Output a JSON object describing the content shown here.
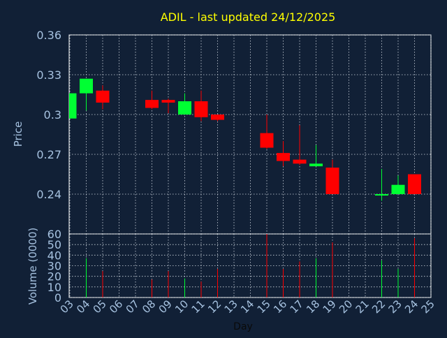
{
  "chart_data": [
    {
      "type": "candlestick",
      "title": "ADIL - last updated 24/12/2025",
      "ylabel": "Price",
      "ylim": [
        0.21,
        0.36
      ],
      "y_ticks": [
        "0.24",
        "0.27",
        "0.3",
        "0.33",
        "0.36"
      ],
      "y_tick_values": [
        0.24,
        0.27,
        0.3,
        0.33,
        0.36
      ],
      "grid": true,
      "candles": [
        {
          "day": "03",
          "open": 0.297,
          "high": 0.316,
          "low": 0.297,
          "close": 0.316
        },
        {
          "day": "04",
          "open": 0.316,
          "high": 0.327,
          "low": 0.303,
          "close": 0.327
        },
        {
          "day": "05",
          "open": 0.318,
          "high": 0.322,
          "low": 0.304,
          "close": 0.309
        },
        {
          "day": "08",
          "open": 0.311,
          "high": 0.318,
          "low": 0.304,
          "close": 0.305
        },
        {
          "day": "09",
          "open": 0.311,
          "high": 0.312,
          "low": 0.301,
          "close": 0.309
        },
        {
          "day": "10",
          "open": 0.3,
          "high": 0.316,
          "low": 0.3,
          "close": 0.31
        },
        {
          "day": "11",
          "open": 0.31,
          "high": 0.318,
          "low": 0.295,
          "close": 0.298
        },
        {
          "day": "12",
          "open": 0.3,
          "high": 0.3,
          "low": 0.295,
          "close": 0.296
        },
        {
          "day": "15",
          "open": 0.286,
          "high": 0.3,
          "low": 0.274,
          "close": 0.275
        },
        {
          "day": "16",
          "open": 0.271,
          "high": 0.28,
          "low": 0.261,
          "close": 0.265
        },
        {
          "day": "17",
          "open": 0.266,
          "high": 0.292,
          "low": 0.262,
          "close": 0.263
        },
        {
          "day": "18",
          "open": 0.261,
          "high": 0.277,
          "low": 0.261,
          "close": 0.263
        },
        {
          "day": "19",
          "open": 0.26,
          "high": 0.266,
          "low": 0.24,
          "close": 0.24
        },
        {
          "day": "22",
          "open": 0.24,
          "high": 0.259,
          "low": 0.235,
          "close": 0.24
        },
        {
          "day": "23",
          "open": 0.24,
          "high": 0.254,
          "low": 0.24,
          "close": 0.247
        },
        {
          "day": "24",
          "open": 0.255,
          "high": 0.255,
          "low": 0.24,
          "close": 0.24
        }
      ],
      "colors": {
        "up": "#00ff33",
        "down": "#ff0000",
        "background": "#112036",
        "text": "#a6c2e0",
        "title": "#ffff00"
      }
    },
    {
      "type": "bar",
      "ylabel": "Volume (0000)",
      "xlabel": "Day",
      "ylim": [
        0,
        60
      ],
      "y_ticks": [
        "0",
        "10",
        "20",
        "30",
        "40",
        "50",
        "60"
      ],
      "y_tick_values": [
        0,
        10,
        20,
        30,
        40,
        50,
        60
      ],
      "x_ticks": [
        "03",
        "04",
        "05",
        "06",
        "07",
        "08",
        "09",
        "10",
        "11",
        "12",
        "13",
        "14",
        "15",
        "16",
        "17",
        "18",
        "19",
        "20",
        "21",
        "22",
        "23",
        "24",
        "25"
      ],
      "volumes": [
        {
          "day": "03",
          "value": 0
        },
        {
          "day": "04",
          "value": 37
        },
        {
          "day": "05",
          "value": 25
        },
        {
          "day": "08",
          "value": 17
        },
        {
          "day": "09",
          "value": 25
        },
        {
          "day": "10",
          "value": 18
        },
        {
          "day": "11",
          "value": 15
        },
        {
          "day": "12",
          "value": 27
        },
        {
          "day": "15",
          "value": 60
        },
        {
          "day": "16",
          "value": 27
        },
        {
          "day": "17",
          "value": 34
        },
        {
          "day": "18",
          "value": 37
        },
        {
          "day": "19",
          "value": 52
        },
        {
          "day": "22",
          "value": 35
        },
        {
          "day": "23",
          "value": 27
        },
        {
          "day": "24",
          "value": 56
        }
      ]
    }
  ]
}
